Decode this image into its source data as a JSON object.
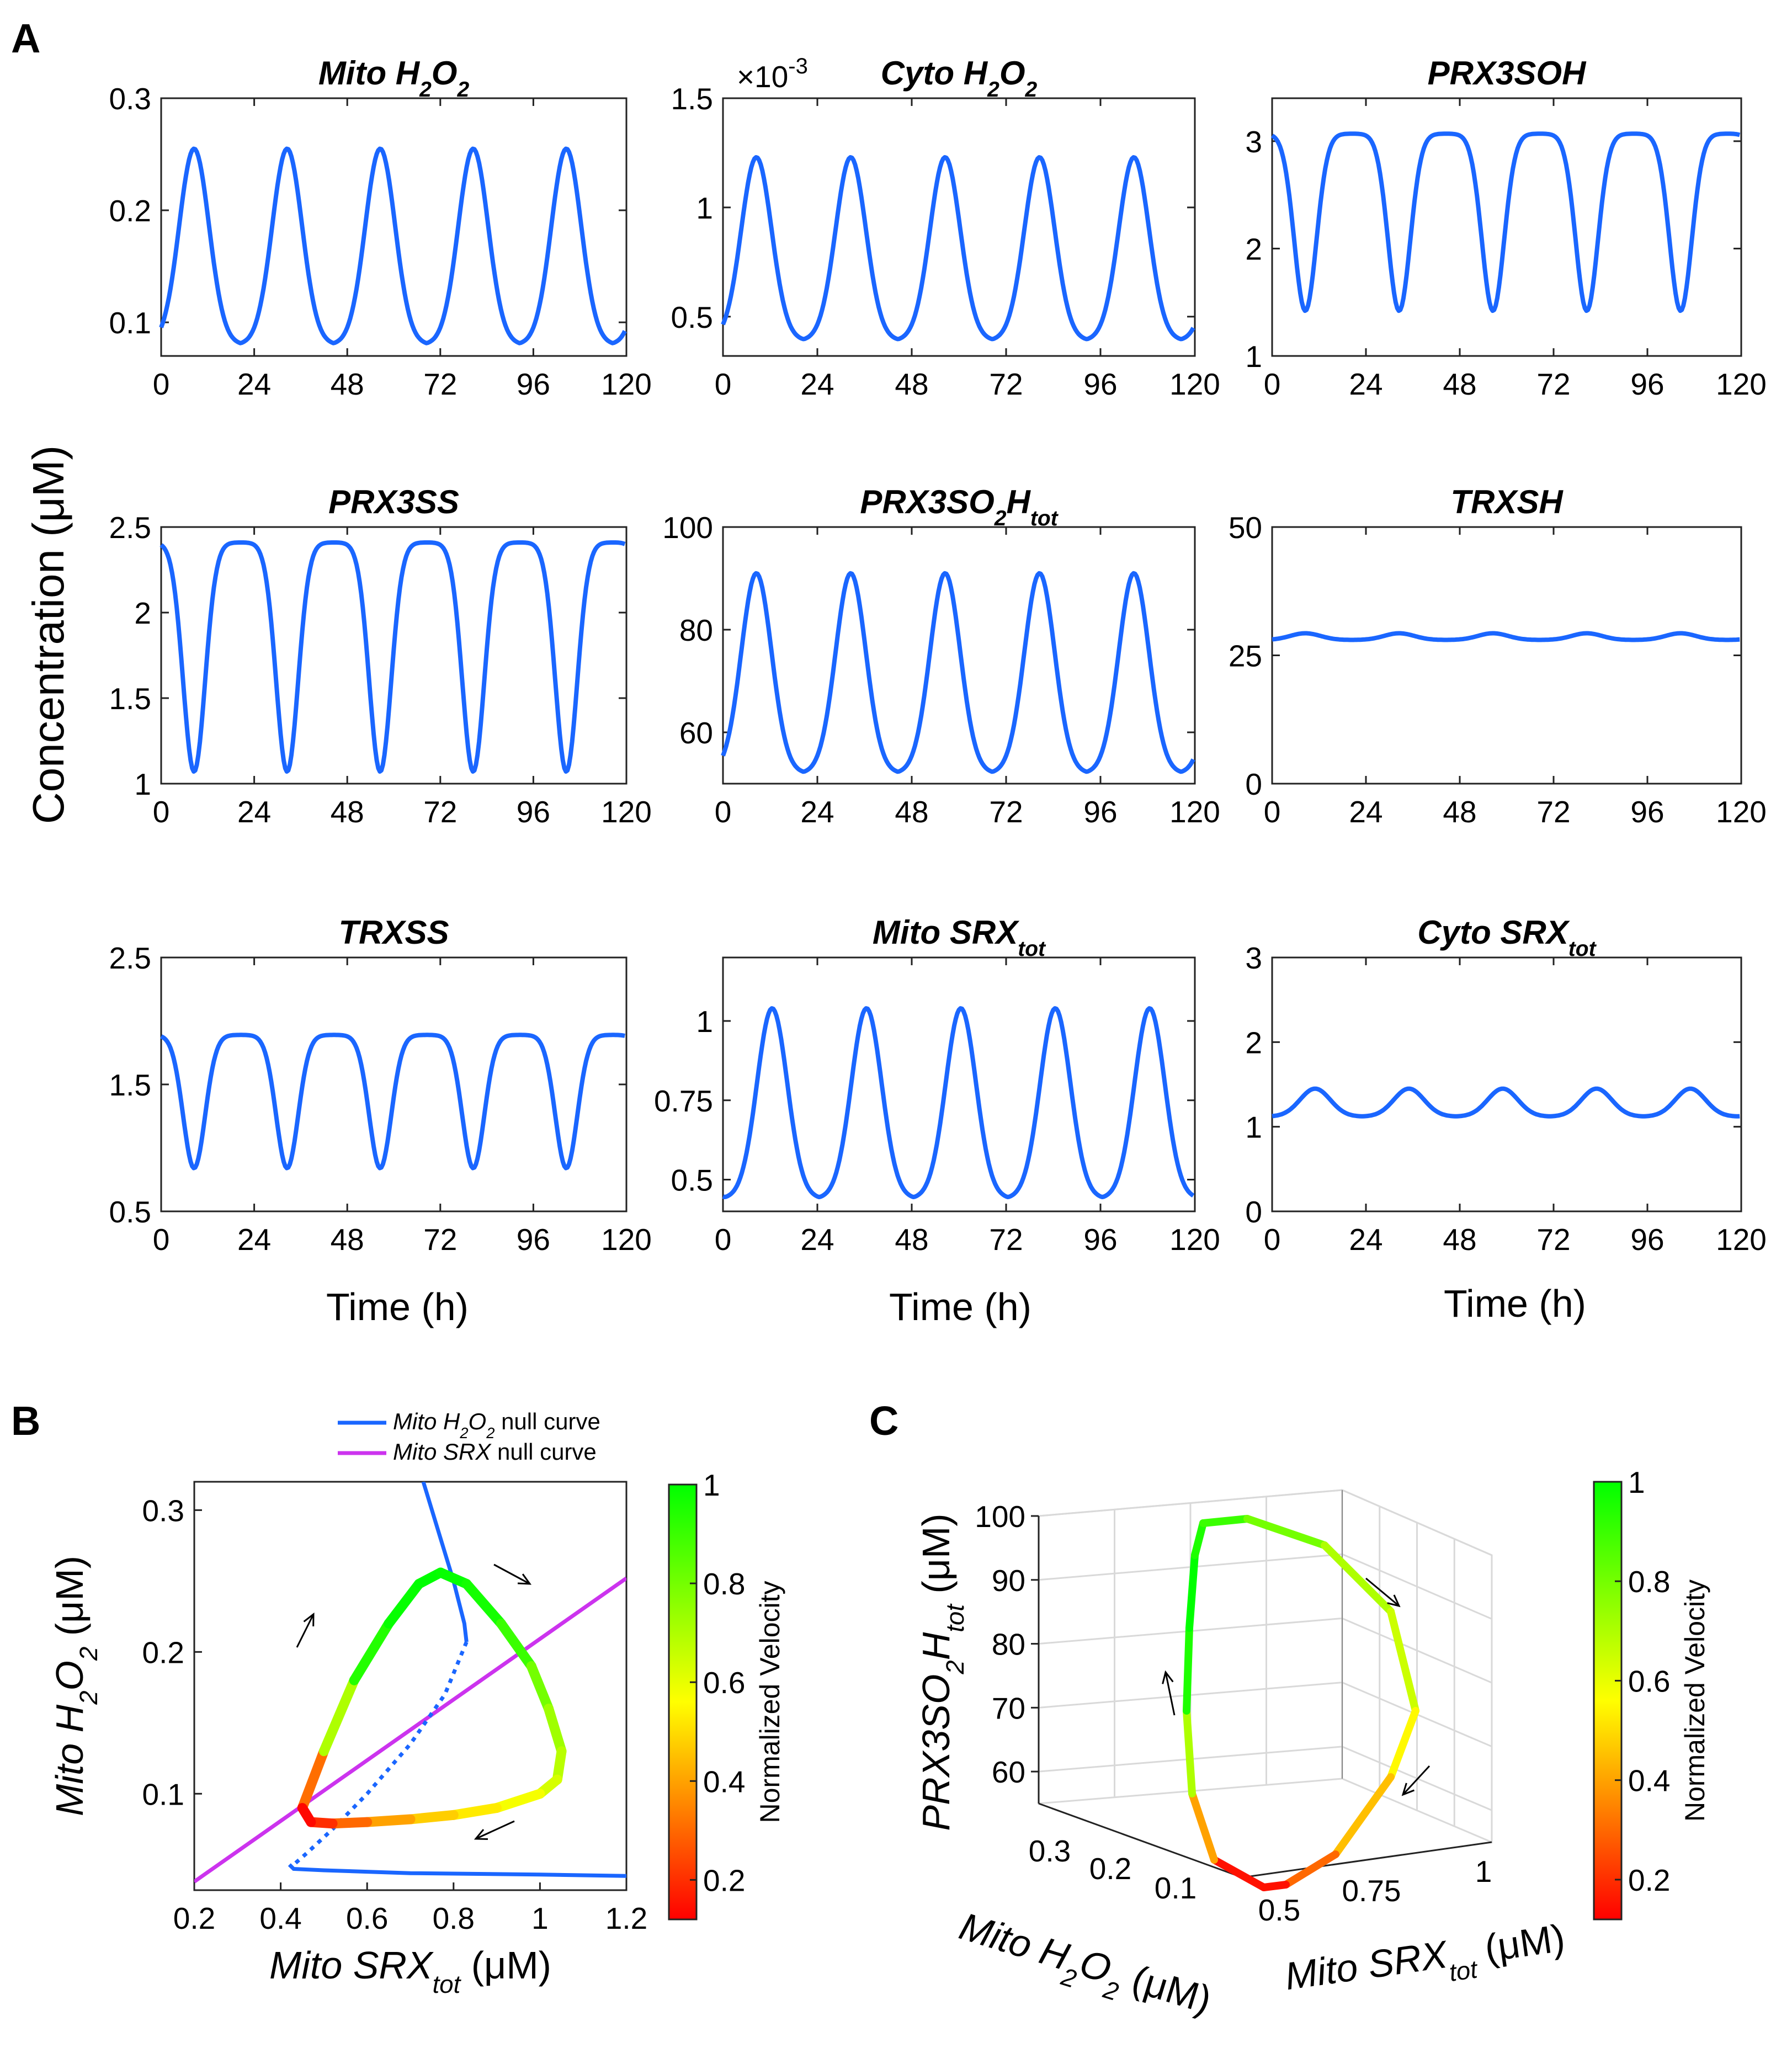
{
  "panels": {
    "A": "A",
    "B": "B",
    "C": "C"
  },
  "shared_labels": {
    "ylabel": "Concentration (μM)",
    "xlabel": "Time (h)"
  },
  "chart_data": [
    {
      "type": "line",
      "id": "mito-h2o2",
      "title": "Mito H",
      "title_parts": [
        "Mito H",
        "2",
        "O",
        "2"
      ],
      "x_ticks": [
        "0",
        "24",
        "48",
        "72",
        "96",
        "120"
      ],
      "y_ticks": [
        "0.1",
        "0.2",
        "0.3"
      ],
      "y_tick_values": [
        0.1,
        0.2,
        0.3
      ],
      "xlim": [
        0,
        120
      ],
      "ylim": [
        0.07,
        0.3
      ],
      "period_h": 24,
      "peak_time_h": 8.5,
      "min": 0.08,
      "max": 0.255,
      "start": 0.088,
      "shape": "peak",
      "color": "#1a66ff"
    },
    {
      "type": "line",
      "id": "cyto-h2o2",
      "title": "Cyto H",
      "title_parts": [
        "Cyto H",
        "2",
        "O",
        "2"
      ],
      "x_ticks": [
        "0",
        "24",
        "48",
        "72",
        "96",
        "120"
      ],
      "y_ticks": [
        "0.5",
        "1",
        "1.5"
      ],
      "y_tick_values": [
        0.5,
        1.0,
        1.5
      ],
      "scale_label": "×10",
      "scale_exponent": "-3",
      "xlim": [
        0,
        120
      ],
      "ylim": [
        0.32,
        1.5
      ],
      "period_h": 24,
      "peak_time_h": 8.5,
      "min": 0.39,
      "max": 1.23,
      "start": 0.44,
      "shape": "peak",
      "color": "#1a66ff"
    },
    {
      "type": "line",
      "id": "prx3soh",
      "title": "PRX3SOH",
      "title_parts": [
        "PRX3SOH"
      ],
      "x_ticks": [
        "0",
        "24",
        "48",
        "72",
        "96",
        "120"
      ],
      "y_ticks": [
        "1",
        "2",
        "3"
      ],
      "y_tick_values": [
        1,
        2,
        3
      ],
      "xlim": [
        0,
        120
      ],
      "ylim": [
        1,
        3.4
      ],
      "period_h": 24,
      "peak_time_h": 8.5,
      "min": 1.42,
      "max": 3.07,
      "start": 3.0,
      "shape": "dip",
      "color": "#1a66ff"
    },
    {
      "type": "line",
      "id": "prx3ss",
      "title": "PRX3SS",
      "title_parts": [
        "PRX3SS"
      ],
      "x_ticks": [
        "0",
        "24",
        "48",
        "72",
        "96",
        "120"
      ],
      "y_ticks": [
        "1",
        "1.5",
        "2",
        "2.5"
      ],
      "y_tick_values": [
        1,
        1.5,
        2,
        2.5
      ],
      "xlim": [
        0,
        120
      ],
      "ylim": [
        1,
        2.5
      ],
      "period_h": 24,
      "peak_time_h": 8.5,
      "min": 1.07,
      "max": 2.41,
      "start": 2.34,
      "shape": "dip",
      "color": "#1a66ff"
    },
    {
      "type": "line",
      "id": "prx3so2h",
      "title": "PRX3SO",
      "title_parts": [
        "PRX3SO",
        "2",
        "H",
        "tot"
      ],
      "x_ticks": [
        "0",
        "24",
        "48",
        "72",
        "96",
        "120"
      ],
      "y_ticks": [
        "60",
        "80",
        "100"
      ],
      "y_tick_values": [
        60,
        80,
        100
      ],
      "xlim": [
        0,
        120
      ],
      "ylim": [
        50,
        100
      ],
      "period_h": 24,
      "peak_time_h": 8.5,
      "min": 52,
      "max": 91,
      "start": 57,
      "shape": "peak",
      "color": "#1a66ff"
    },
    {
      "type": "line",
      "id": "trxsh",
      "title": "TRXSH",
      "title_parts": [
        "TRXSH"
      ],
      "x_ticks": [
        "0",
        "24",
        "48",
        "72",
        "96",
        "120"
      ],
      "y_ticks": [
        "0",
        "25",
        "50"
      ],
      "y_tick_values": [
        0,
        25,
        50
      ],
      "xlim": [
        0,
        120
      ],
      "ylim": [
        0,
        50
      ],
      "period_h": 24,
      "peak_time_h": 8.5,
      "min": 28,
      "max": 29.3,
      "start": 28.2,
      "shape": "peak",
      "color": "#1a66ff"
    },
    {
      "type": "line",
      "id": "trxss",
      "title": "TRXSS",
      "title_parts": [
        "TRXSS"
      ],
      "x_ticks": [
        "0",
        "24",
        "48",
        "72",
        "96",
        "120"
      ],
      "y_ticks": [
        "0.5",
        "1.5",
        "2.5"
      ],
      "y_tick_values": [
        0.5,
        1.5,
        2.5
      ],
      "xlim": [
        0,
        120
      ],
      "ylim": [
        0.5,
        2.5
      ],
      "period_h": 24,
      "peak_time_h": 8.5,
      "min": 0.84,
      "max": 1.89,
      "start": 1.83,
      "shape": "dip",
      "color": "#1a66ff"
    },
    {
      "type": "line",
      "id": "mito-srx",
      "title": "Mito SRX",
      "title_parts": [
        "Mito SRX",
        "tot"
      ],
      "x_ticks": [
        "0",
        "24",
        "48",
        "72",
        "96",
        "120"
      ],
      "y_ticks": [
        "0.5",
        "0.75",
        "1"
      ],
      "y_tick_values": [
        0.5,
        0.75,
        1.0
      ],
      "xlim": [
        0,
        120
      ],
      "ylim": [
        0.4,
        1.2
      ],
      "period_h": 24,
      "peak_time_h": 12.5,
      "min": 0.44,
      "max": 1.04,
      "start": 0.45,
      "shape": "peak",
      "color": "#1a66ff"
    },
    {
      "type": "line",
      "id": "cyto-srx",
      "title": "Cyto SRX",
      "title_parts": [
        "Cyto SRX",
        "tot"
      ],
      "x_ticks": [
        "0",
        "24",
        "48",
        "72",
        "96",
        "120"
      ],
      "y_ticks": [
        "0",
        "1",
        "2",
        "3"
      ],
      "y_tick_values": [
        0,
        1,
        2,
        3
      ],
      "xlim": [
        0,
        120
      ],
      "ylim": [
        0,
        3
      ],
      "period_h": 24,
      "peak_time_h": 11,
      "min": 1.12,
      "max": 1.45,
      "start": 1.12,
      "shape": "peak",
      "color": "#1a66ff"
    },
    {
      "type": "phase-plot",
      "id": "phase-B",
      "xlabel": "Mito SRX",
      "xlabel_parts": [
        "Mito SRX",
        "tot",
        " (μM)"
      ],
      "ylabel_parts": [
        "Mito H",
        "2",
        "O",
        "2",
        " (μM)"
      ],
      "x_ticks": [
        "0.2",
        "0.4",
        "0.6",
        "0.8",
        "1",
        "1.2"
      ],
      "x_tick_values": [
        0.2,
        0.4,
        0.6,
        0.8,
        1.0,
        1.2
      ],
      "y_ticks": [
        "0.1",
        "0.2",
        "0.3"
      ],
      "y_tick_values": [
        0.1,
        0.2,
        0.3
      ],
      "xlim": [
        0.2,
        1.2
      ],
      "ylim": [
        0.032,
        0.32
      ],
      "legend": [
        {
          "label_parts": [
            "Mito H",
            "2",
            "O",
            "2",
            " null curve"
          ],
          "color": "#1a66ff"
        },
        {
          "label_parts": [
            "Mito SRX",
            "",
            "",
            "",
            "  null curve"
          ],
          "color": "#cc33ee"
        }
      ],
      "srx_nullcline": {
        "x": [
          0.2,
          1.2
        ],
        "y": [
          0.038,
          0.252
        ]
      },
      "h2o2_nullcline_upper": {
        "x": [
          0.73,
          0.77,
          0.8,
          0.825,
          0.83
        ],
        "y": [
          0.32,
          0.28,
          0.25,
          0.22,
          0.207
        ]
      },
      "h2o2_nullcline_dashed": {
        "x": [
          0.83,
          0.78,
          0.7,
          0.6,
          0.52,
          0.46,
          0.43
        ],
        "y": [
          0.207,
          0.17,
          0.135,
          0.1,
          0.075,
          0.058,
          0.05
        ]
      },
      "h2o2_nullcline_lower": {
        "x": [
          0.42,
          0.43,
          0.5,
          0.7,
          1.0,
          1.2
        ],
        "y": [
          0.05,
          0.047,
          0.046,
          0.044,
          0.043,
          0.042
        ]
      },
      "trajectory": {
        "x": [
          0.45,
          0.5,
          0.57,
          0.65,
          0.72,
          0.77,
          0.83,
          0.91,
          0.98,
          1.02,
          1.05,
          1.04,
          1.0,
          0.9,
          0.8,
          0.7,
          0.6,
          0.52,
          0.47,
          0.45
        ],
        "y": [
          0.09,
          0.13,
          0.18,
          0.22,
          0.248,
          0.256,
          0.248,
          0.22,
          0.19,
          0.16,
          0.13,
          0.11,
          0.1,
          0.09,
          0.085,
          0.082,
          0.08,
          0.079,
          0.08,
          0.09
        ],
        "velocity": [
          0.12,
          0.5,
          0.9,
          0.98,
          1.0,
          1.0,
          0.98,
          0.95,
          0.85,
          0.75,
          0.7,
          0.66,
          0.6,
          0.55,
          0.5,
          0.45,
          0.35,
          0.25,
          0.15,
          0.12
        ]
      },
      "arrows": [
        "up",
        "down-right",
        "down-left"
      ]
    },
    {
      "type": "3d-phase-plot",
      "id": "phase-C",
      "ylabel_parts": [
        "PRX3SO",
        "2",
        "H",
        "tot",
        " (μM)"
      ],
      "xlabel_left_parts": [
        "Mito H",
        "2",
        "O",
        "2",
        " (μM)"
      ],
      "xlabel_right_parts": [
        "Mito SRX",
        "tot",
        " (μM)"
      ],
      "z_ticks": [
        "60",
        "70",
        "80",
        "90",
        "100"
      ],
      "z_tick_values": [
        60,
        70,
        80,
        90,
        100
      ],
      "h2o2_ticks": [
        "0.3",
        "0.2",
        "0.1"
      ],
      "srx_ticks": [
        "0.5",
        "0.75",
        "1"
      ],
      "trajectory_velocity": [
        0.15,
        0.4,
        0.7,
        0.95,
        1.0,
        0.95,
        0.9,
        0.8,
        0.7,
        0.65,
        0.55,
        0.45,
        0.3,
        0.15
      ]
    }
  ],
  "colorbar": {
    "label": "Normalized Velocity",
    "ticks": [
      "1",
      "0.8",
      "0.6",
      "0.4",
      "0.2"
    ],
    "tick_values": [
      1,
      0.8,
      0.6,
      0.4,
      0.2
    ],
    "range": [
      0.12,
      1
    ],
    "colors": [
      "#ff0000",
      "#ffff00",
      "#00ff00"
    ]
  }
}
